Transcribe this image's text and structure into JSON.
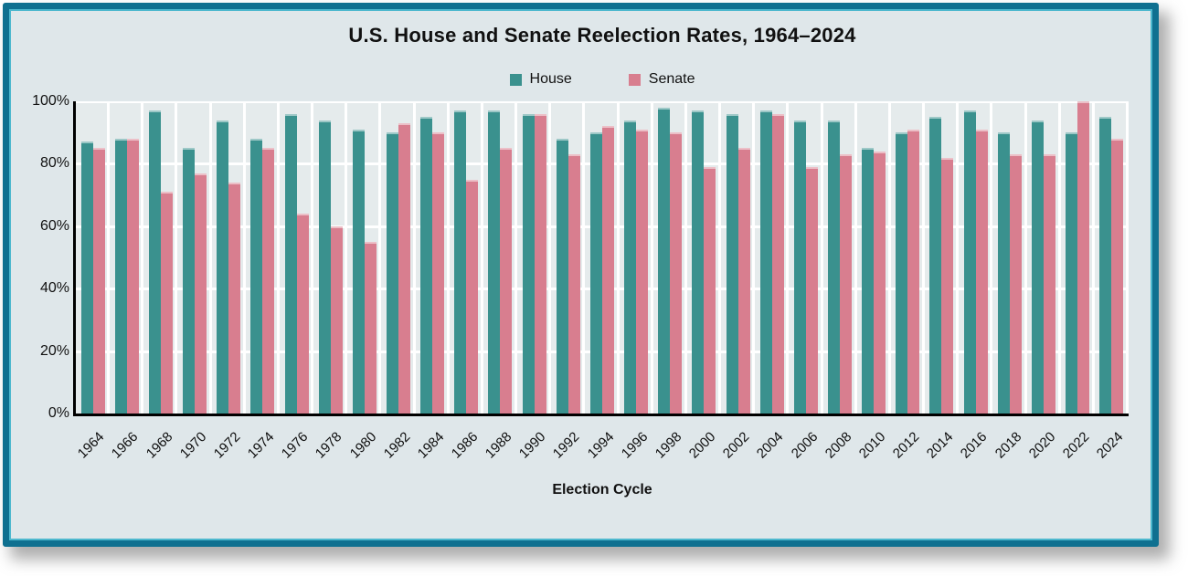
{
  "chart_data": {
    "type": "bar",
    "title": "U.S. House and Senate Reelection Rates, 1964–2024",
    "xlabel": "Election Cycle",
    "ylabel": "",
    "ylim": [
      0,
      100
    ],
    "yticks": [
      0,
      20,
      40,
      60,
      80,
      100
    ],
    "ytick_suffix": "%",
    "grid": true,
    "legend_position": "top-center",
    "categories": [
      "1964",
      "1966",
      "1968",
      "1970",
      "1972",
      "1974",
      "1976",
      "1978",
      "1980",
      "1982",
      "1984",
      "1986",
      "1988",
      "1990",
      "1992",
      "1994",
      "1996",
      "1998",
      "2000",
      "2002",
      "2004",
      "2006",
      "2008",
      "2010",
      "2012",
      "2014",
      "2016",
      "2018",
      "2020",
      "2022",
      "2024"
    ],
    "series": [
      {
        "name": "House",
        "color": "#3A918E",
        "values": [
          87,
          88,
          97,
          85,
          94,
          88,
          96,
          94,
          91,
          90,
          95,
          97,
          97,
          96,
          88,
          90,
          94,
          98,
          97,
          96,
          97,
          94,
          94,
          85,
          90,
          95,
          97,
          90,
          94,
          90,
          95
        ]
      },
      {
        "name": "Senate",
        "color": "#D87E8F",
        "values": [
          85,
          88,
          71,
          77,
          74,
          85,
          64,
          60,
          55,
          93,
          90,
          75,
          85,
          96,
          83,
          92,
          91,
          90,
          79,
          85,
          96,
          79,
          83,
          84,
          91,
          82,
          91,
          83,
          83,
          100,
          88
        ]
      }
    ]
  },
  "theme": {
    "panel_bg": "#dfe7ea",
    "plot_bg": "#e5ebec",
    "gridline": "#ffffff",
    "axis_color": "#000000",
    "border_color": "#0f7090",
    "border_inner": "#4db8ce",
    "text_color": "#111111"
  }
}
